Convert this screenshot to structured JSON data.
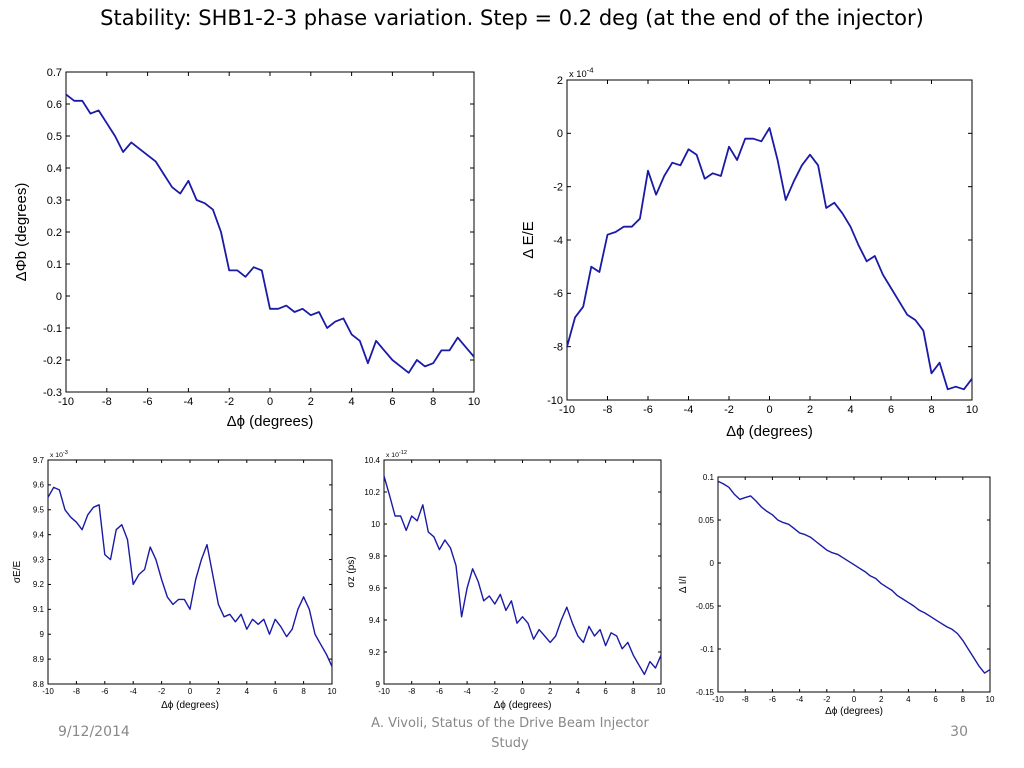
{
  "slide": {
    "title": "Stability: SHB1-2-3 phase variation. Step = 0.2 deg (at the end of the injector)",
    "footer_date": "9/12/2014",
    "footer_text": "A. Vivoli, Status of the Drive Beam Injector Study",
    "page_number": "30",
    "line_color": "#1a1aa6"
  },
  "chart_data": [
    {
      "id": "phi-b",
      "type": "line",
      "title": "",
      "xlabel": "Δϕ (degrees)",
      "ylabel": "ΔΦb (degrees)",
      "xlim": [
        -10,
        10
      ],
      "ylim": [
        -0.3,
        0.7
      ],
      "x_ticks": [
        "-10",
        "-8",
        "-6",
        "-4",
        "-2",
        "0",
        "2",
        "4",
        "6",
        "8",
        "10"
      ],
      "y_ticks": [
        "-0.3",
        "-0.2",
        "-0.1",
        "0",
        "0.1",
        "0.2",
        "0.3",
        "0.4",
        "0.5",
        "0.6",
        "0.7"
      ],
      "exponent": "",
      "grid": false,
      "series": [
        {
          "x": [
            -10,
            -9.6,
            -9.2,
            -8.8,
            -8.4,
            -8.0,
            -7.6,
            -7.2,
            -6.8,
            -6.4,
            -6.0,
            -5.6,
            -5.2,
            -4.8,
            -4.4,
            -4.0,
            -3.6,
            -3.2,
            -2.8,
            -2.4,
            -2.0,
            -1.6,
            -1.2,
            -0.8,
            -0.4,
            0.0,
            0.4,
            0.8,
            1.2,
            1.6,
            2.0,
            2.4,
            2.8,
            3.2,
            3.6,
            4.0,
            4.4,
            4.8,
            5.2,
            5.6,
            6.0,
            6.4,
            6.8,
            7.2,
            7.6,
            8.0,
            8.4,
            8.8,
            9.2,
            9.6,
            10.0
          ],
          "y": [
            0.63,
            0.61,
            0.61,
            0.57,
            0.58,
            0.54,
            0.5,
            0.45,
            0.48,
            0.46,
            0.44,
            0.42,
            0.38,
            0.34,
            0.32,
            0.36,
            0.3,
            0.29,
            0.27,
            0.2,
            0.08,
            0.08,
            0.06,
            0.09,
            0.08,
            -0.04,
            -0.04,
            -0.03,
            -0.05,
            -0.04,
            -0.06,
            -0.05,
            -0.1,
            -0.08,
            -0.07,
            -0.12,
            -0.14,
            -0.21,
            -0.14,
            -0.17,
            -0.2,
            -0.22,
            -0.24,
            -0.2,
            -0.22,
            -0.21,
            -0.17,
            -0.17,
            -0.13,
            -0.16,
            -0.19
          ]
        }
      ]
    },
    {
      "id": "delta-e",
      "type": "line",
      "title": "",
      "xlabel": "Δϕ (degrees)",
      "ylabel": "Δ E/E",
      "xlim": [
        -10,
        10
      ],
      "ylim": [
        -10,
        2
      ],
      "x_ticks": [
        "-10",
        "-8",
        "-6",
        "-4",
        "-2",
        "0",
        "2",
        "4",
        "6",
        "8",
        "10"
      ],
      "y_ticks": [
        "-10",
        "-8",
        "-6",
        "-4",
        "-2",
        "0",
        "2"
      ],
      "exponent": "x 10-4",
      "grid": false,
      "series": [
        {
          "x": [
            -10,
            -9.6,
            -9.2,
            -8.8,
            -8.4,
            -8.0,
            -7.6,
            -7.2,
            -6.8,
            -6.4,
            -6.0,
            -5.6,
            -5.2,
            -4.8,
            -4.4,
            -4.0,
            -3.6,
            -3.2,
            -2.8,
            -2.4,
            -2.0,
            -1.6,
            -1.2,
            -0.8,
            -0.4,
            0.0,
            0.4,
            0.8,
            1.2,
            1.6,
            2.0,
            2.4,
            2.8,
            3.2,
            3.6,
            4.0,
            4.4,
            4.8,
            5.2,
            5.6,
            6.0,
            6.4,
            6.8,
            7.2,
            7.6,
            8.0,
            8.4,
            8.8,
            9.2,
            9.6,
            10.0
          ],
          "y": [
            -8.0,
            -6.9,
            -6.5,
            -5.0,
            -5.2,
            -3.8,
            -3.7,
            -3.5,
            -3.5,
            -3.2,
            -1.4,
            -2.3,
            -1.6,
            -1.1,
            -1.2,
            -0.6,
            -0.8,
            -1.7,
            -1.5,
            -1.6,
            -0.5,
            -1.0,
            -0.2,
            -0.2,
            -0.3,
            0.2,
            -1.0,
            -2.5,
            -1.8,
            -1.2,
            -0.8,
            -1.2,
            -2.8,
            -2.6,
            -3.0,
            -3.5,
            -4.2,
            -4.8,
            -4.6,
            -5.3,
            -5.8,
            -6.3,
            -6.8,
            -7.0,
            -7.4,
            -9.0,
            -8.6,
            -9.6,
            -9.5,
            -9.6,
            -9.2
          ]
        }
      ]
    },
    {
      "id": "sigma-e",
      "type": "line",
      "title": "",
      "xlabel": "Δϕ (degrees)",
      "ylabel": "σE/E",
      "xlim": [
        -10,
        10
      ],
      "ylim": [
        8.8,
        9.7
      ],
      "x_ticks": [
        "-10",
        "-8",
        "-6",
        "-4",
        "-2",
        "0",
        "2",
        "4",
        "6",
        "8",
        "10"
      ],
      "y_ticks": [
        "8.8",
        "8.9",
        "9",
        "9.1",
        "9.2",
        "9.3",
        "9.4",
        "9.5",
        "9.6",
        "9.7"
      ],
      "exponent": "x 10-3",
      "grid": false,
      "series": [
        {
          "x": [
            -10,
            -9.6,
            -9.2,
            -8.8,
            -8.4,
            -8.0,
            -7.6,
            -7.2,
            -6.8,
            -6.4,
            -6.0,
            -5.6,
            -5.2,
            -4.8,
            -4.4,
            -4.0,
            -3.6,
            -3.2,
            -2.8,
            -2.4,
            -2.0,
            -1.6,
            -1.2,
            -0.8,
            -0.4,
            0.0,
            0.4,
            0.8,
            1.2,
            1.6,
            2.0,
            2.4,
            2.8,
            3.2,
            3.6,
            4.0,
            4.4,
            4.8,
            5.2,
            5.6,
            6.0,
            6.4,
            6.8,
            7.2,
            7.6,
            8.0,
            8.4,
            8.8,
            9.2,
            9.6,
            10.0
          ],
          "y": [
            9.55,
            9.59,
            9.58,
            9.5,
            9.47,
            9.45,
            9.42,
            9.48,
            9.51,
            9.52,
            9.32,
            9.3,
            9.42,
            9.44,
            9.38,
            9.2,
            9.24,
            9.26,
            9.35,
            9.3,
            9.22,
            9.15,
            9.12,
            9.14,
            9.14,
            9.1,
            9.22,
            9.3,
            9.36,
            9.24,
            9.12,
            9.07,
            9.08,
            9.05,
            9.08,
            9.02,
            9.06,
            9.04,
            9.06,
            9.0,
            9.06,
            9.03,
            8.99,
            9.02,
            9.1,
            9.15,
            9.1,
            9.0,
            8.96,
            8.92,
            8.87
          ]
        }
      ]
    },
    {
      "id": "sigma-z",
      "type": "line",
      "title": "",
      "xlabel": "Δϕ (degrees)",
      "ylabel": "σz (ps)",
      "xlim": [
        -10,
        10
      ],
      "ylim": [
        9,
        10.4
      ],
      "x_ticks": [
        "-10",
        "-8",
        "-6",
        "-4",
        "-2",
        "0",
        "2",
        "4",
        "6",
        "8",
        "10"
      ],
      "y_ticks": [
        "9",
        "9.2",
        "9.4",
        "9.6",
        "9.8",
        "10",
        "10.2",
        "10.4"
      ],
      "exponent": "x 10-12",
      "grid": false,
      "series": [
        {
          "x": [
            -10,
            -9.6,
            -9.2,
            -8.8,
            -8.4,
            -8.0,
            -7.6,
            -7.2,
            -6.8,
            -6.4,
            -6.0,
            -5.6,
            -5.2,
            -4.8,
            -4.4,
            -4.0,
            -3.6,
            -3.2,
            -2.8,
            -2.4,
            -2.0,
            -1.6,
            -1.2,
            -0.8,
            -0.4,
            0.0,
            0.4,
            0.8,
            1.2,
            1.6,
            2.0,
            2.4,
            2.8,
            3.2,
            3.6,
            4.0,
            4.4,
            4.8,
            5.2,
            5.6,
            6.0,
            6.4,
            6.8,
            7.2,
            7.6,
            8.0,
            8.4,
            8.8,
            9.2,
            9.6,
            10.0
          ],
          "y": [
            10.3,
            10.18,
            10.05,
            10.05,
            9.96,
            10.05,
            10.02,
            10.12,
            9.95,
            9.92,
            9.84,
            9.9,
            9.85,
            9.74,
            9.42,
            9.6,
            9.72,
            9.64,
            9.52,
            9.55,
            9.5,
            9.56,
            9.46,
            9.52,
            9.38,
            9.42,
            9.38,
            9.28,
            9.34,
            9.3,
            9.26,
            9.3,
            9.4,
            9.48,
            9.38,
            9.3,
            9.26,
            9.36,
            9.3,
            9.34,
            9.24,
            9.32,
            9.3,
            9.22,
            9.26,
            9.18,
            9.12,
            9.06,
            9.14,
            9.1,
            9.18
          ]
        }
      ]
    },
    {
      "id": "delta-i",
      "type": "line",
      "title": "",
      "xlabel": "Δϕ (degrees)",
      "ylabel": "Δ I/I",
      "xlim": [
        -10,
        10
      ],
      "ylim": [
        -0.15,
        0.1
      ],
      "x_ticks": [
        "-10",
        "-8",
        "-6",
        "-4",
        "-2",
        "0",
        "2",
        "4",
        "6",
        "8",
        "10"
      ],
      "y_ticks": [
        "-0.15",
        "-0.1",
        "-0.05",
        "0",
        "0.05",
        "0.1"
      ],
      "exponent": "",
      "grid": false,
      "series": [
        {
          "x": [
            -10,
            -9.6,
            -9.2,
            -8.8,
            -8.4,
            -8.0,
            -7.6,
            -7.2,
            -6.8,
            -6.4,
            -6.0,
            -5.6,
            -5.2,
            -4.8,
            -4.4,
            -4.0,
            -3.6,
            -3.2,
            -2.8,
            -2.4,
            -2.0,
            -1.6,
            -1.2,
            -0.8,
            -0.4,
            0.0,
            0.4,
            0.8,
            1.2,
            1.6,
            2.0,
            2.4,
            2.8,
            3.2,
            3.6,
            4.0,
            4.4,
            4.8,
            5.2,
            5.6,
            6.0,
            6.4,
            6.8,
            7.2,
            7.6,
            8.0,
            8.4,
            8.8,
            9.2,
            9.6,
            10.0
          ],
          "y": [
            0.095,
            0.092,
            0.088,
            0.08,
            0.074,
            0.076,
            0.078,
            0.072,
            0.065,
            0.06,
            0.056,
            0.05,
            0.047,
            0.045,
            0.04,
            0.035,
            0.033,
            0.03,
            0.025,
            0.02,
            0.015,
            0.012,
            0.01,
            0.006,
            0.002,
            -0.002,
            -0.006,
            -0.01,
            -0.015,
            -0.018,
            -0.024,
            -0.028,
            -0.032,
            -0.038,
            -0.042,
            -0.046,
            -0.05,
            -0.055,
            -0.058,
            -0.062,
            -0.066,
            -0.07,
            -0.074,
            -0.077,
            -0.082,
            -0.09,
            -0.1,
            -0.11,
            -0.12,
            -0.128,
            -0.124
          ]
        }
      ]
    }
  ]
}
